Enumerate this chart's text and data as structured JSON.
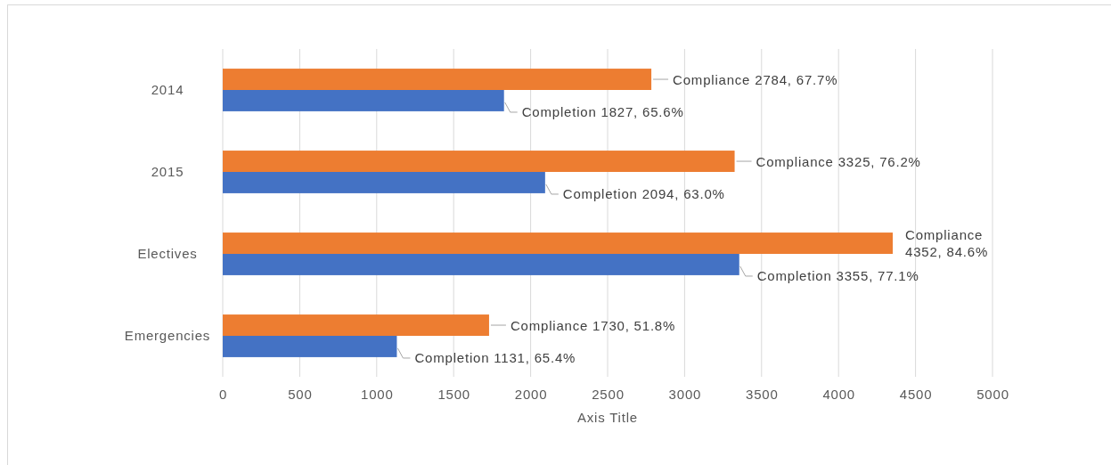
{
  "chart_data": {
    "type": "bar",
    "orientation": "horizontal",
    "categories": [
      "2014",
      "2015",
      "Electives",
      "Emergencies"
    ],
    "series": [
      {
        "color": "#ed7d31",
        "values": [
          2784,
          3325,
          4352,
          1730
        ],
        "value_labels": [
          "Compliance 2784, 67.7%",
          "Compliance 3325, 76.2%",
          "Compliance 4352, 84.6%",
          "Compliance 1730, 51.8%"
        ]
      },
      {
        "color": "#4472c4",
        "values": [
          1827,
          2094,
          3355,
          1131
        ],
        "value_labels": [
          "Completion 1827, 65.6%",
          "Completion 2094, 63.0%",
          "Completion 3355, 77.1%",
          "Completion 1131, 65.4%"
        ]
      }
    ],
    "xlabel": "Axis Title",
    "xlim": [
      0,
      5000
    ],
    "xticks": [
      0,
      500,
      1000,
      1500,
      2000,
      2500,
      3000,
      3500,
      4000,
      4500,
      5000
    ],
    "grid": "x"
  }
}
